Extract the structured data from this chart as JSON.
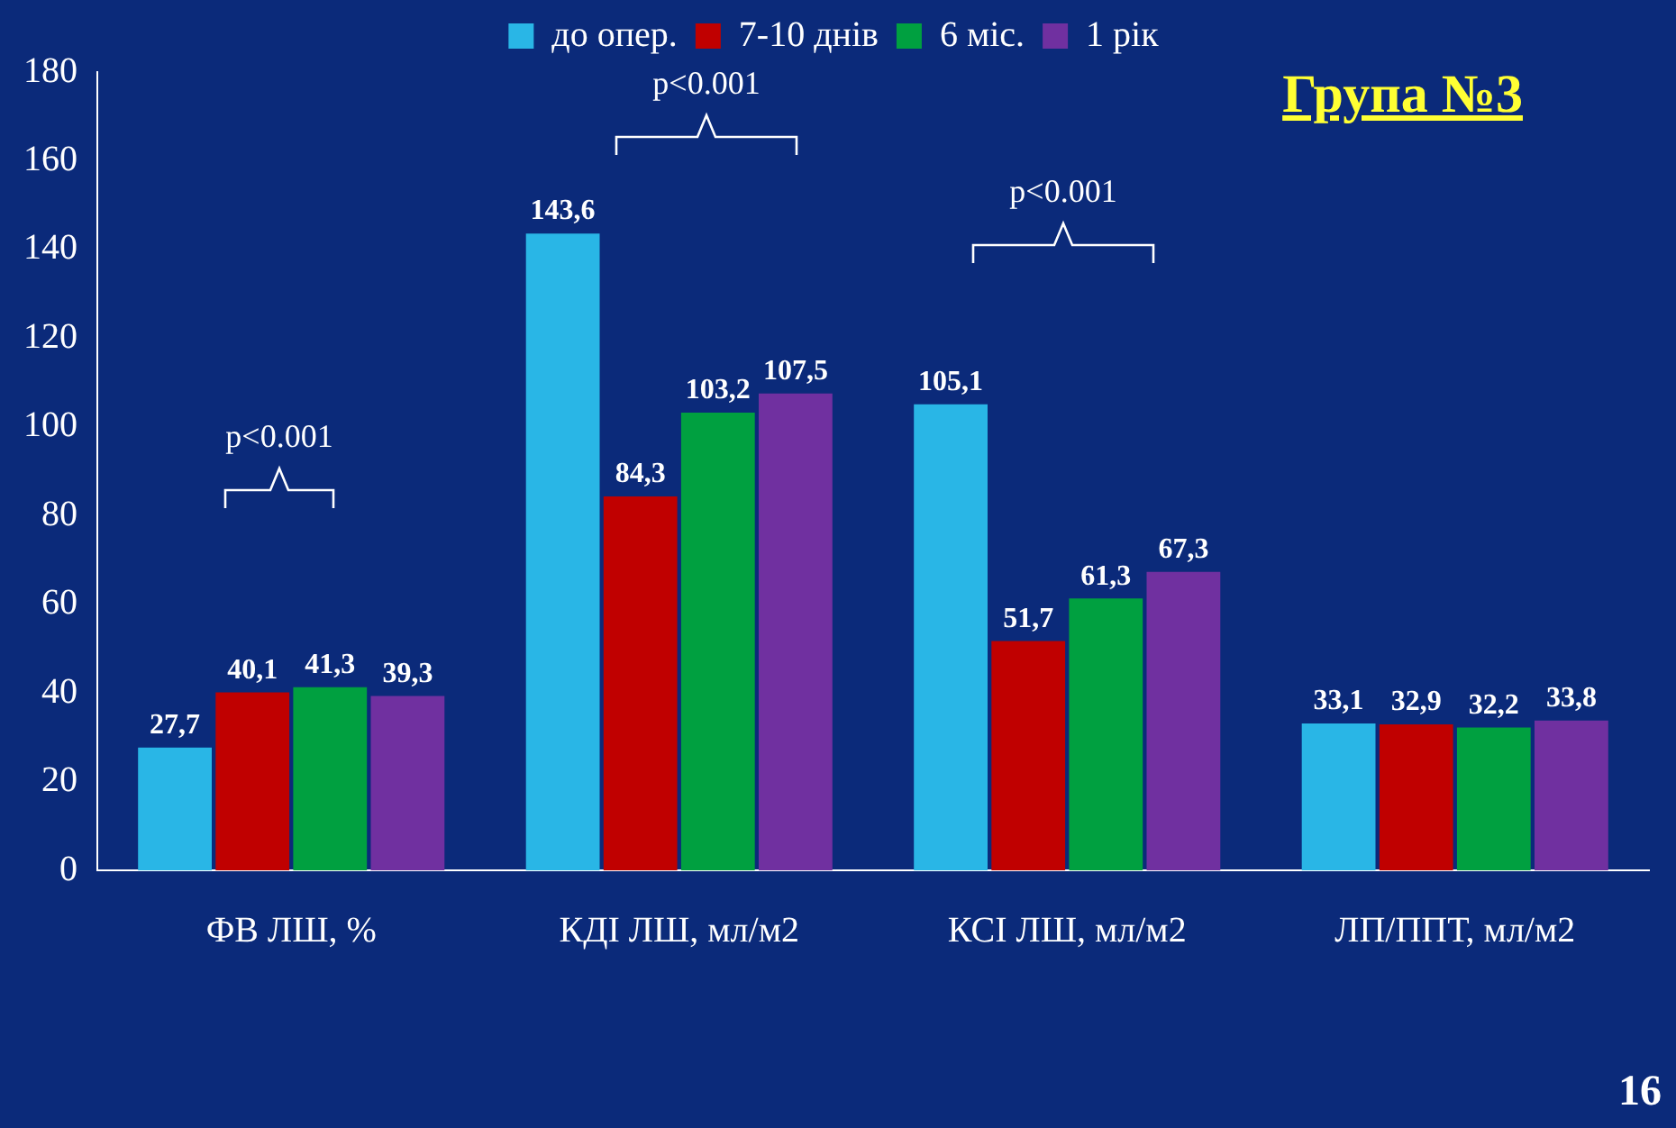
{
  "chart_data": {
    "type": "bar",
    "title": "Група №3",
    "categories": [
      "ФВ ЛШ, %",
      "КДІ ЛШ, мл/м2",
      "КСІ ЛШ, мл/м2",
      "ЛП/ППТ, мл/м2"
    ],
    "series": [
      {
        "name": "до опер.",
        "color": "#29b6e6",
        "values": [
          27.7,
          143.6,
          105.1,
          33.1
        ],
        "value_labels": [
          "27,7",
          "143,6",
          "105,1",
          "33,1"
        ]
      },
      {
        "name": "7-10 днів",
        "color": "#c00000",
        "values": [
          40.1,
          84.3,
          51.7,
          32.9
        ],
        "value_labels": [
          "40,1",
          "84,3",
          "51,7",
          "32,9"
        ]
      },
      {
        "name": "6 міс.",
        "color": "#00a040",
        "values": [
          41.3,
          103.2,
          61.3,
          32.2
        ],
        "value_labels": [
          "41,3",
          "103,2",
          "61,3",
          "32,2"
        ]
      },
      {
        "name": "1 рік",
        "color": "#7030a0",
        "values": [
          39.3,
          107.5,
          67.3,
          33.8
        ],
        "value_labels": [
          "39,3",
          "107,5",
          "67,3",
          "33,8"
        ]
      }
    ],
    "ylim": [
      0,
      180
    ],
    "yticks": [
      0,
      20,
      40,
      60,
      80,
      100,
      120,
      140,
      160,
      180
    ],
    "grid": false,
    "legend": "top",
    "annotations": [
      "p<0.001",
      "p<0.001",
      "p<0.001",
      "16"
    ]
  }
}
